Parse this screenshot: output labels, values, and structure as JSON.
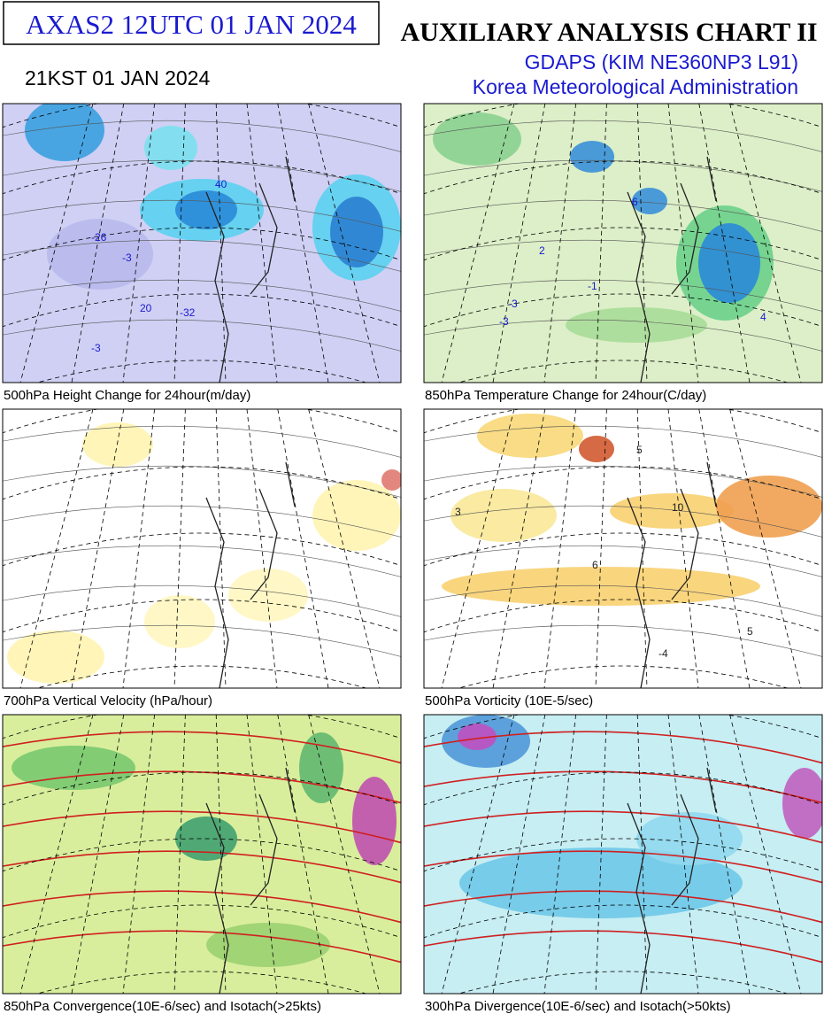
{
  "header": {
    "code": "AXAS2  12UTC 01 JAN 2024",
    "title": "AUXILIARY ANALYSIS CHART II",
    "local_time": "21KST 01 JAN 2024",
    "model": "GDAPS (KIM NE360NP3 L91)",
    "agency": "Korea Meteorological Administration"
  },
  "panels": [
    {
      "caption": "500hPa Height Change for 24hour(m/day)",
      "labels": [
        "40",
        "-26",
        "-3",
        "20",
        "-32",
        "-3"
      ]
    },
    {
      "caption": "850hPa Temperature Change for 24hour(C/day)",
      "labels": [
        "2",
        "-3",
        "6",
        "-1",
        "4",
        "-3"
      ]
    },
    {
      "caption": "700hPa Vertical Velocity (hPa/hour)",
      "labels": []
    },
    {
      "caption": "500hPa Vorticity (10E-5/sec)",
      "labels": [
        "3",
        "5",
        "10",
        "6",
        "-4",
        "5"
      ]
    },
    {
      "caption": "850hPa Convergence(10E-6/sec) and Isotach(>25kts)",
      "labels": []
    },
    {
      "caption": "300hPa Divergence(10E-6/sec) and Isotach(>50kts)",
      "labels": []
    }
  ]
}
